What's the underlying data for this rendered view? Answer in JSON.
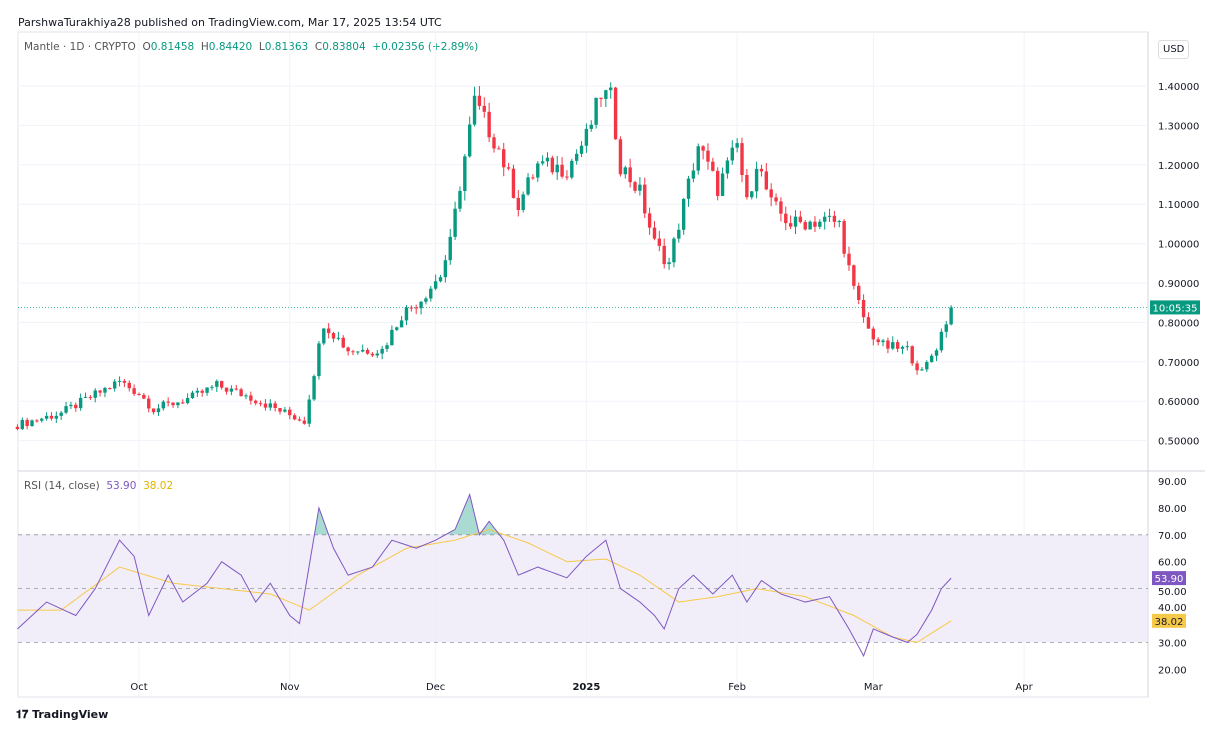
{
  "header": {
    "publisher": "ParshwaTurakhiya28 published on TradingView.com, Mar 17, 2025 13:54 UTC"
  },
  "legend": {
    "symbol": "Mantle · 1D · CRYPTO",
    "o_label": "O",
    "o": "0.81458",
    "h_label": "H",
    "h": "0.84420",
    "l_label": "L",
    "l": "0.81363",
    "c_label": "C",
    "c": "0.83804",
    "change": "+0.02356 (+2.89%)"
  },
  "currency": "USD",
  "countdown": "10:05:35",
  "rsi_legend": {
    "label": "RSI (14, close)",
    "rsi": "53.90",
    "ma": "38.02"
  },
  "brand": "TradingView",
  "colors": {
    "up": "#089981",
    "down": "#f23645",
    "rsi": "#7e57c2",
    "rsi_ma": "#f7c948",
    "band": "#ede7f6"
  },
  "chart_data": [
    {
      "type": "candlestick",
      "title": "Mantle · 1D · CRYPTO",
      "last_close": 0.83804,
      "ylim": [
        0.45,
        1.45
      ],
      "y_ticks": [
        "1.40000",
        "1.30000",
        "1.20000",
        "1.10000",
        "1.00000",
        "0.90000",
        "0.80000",
        "0.70000",
        "0.60000",
        "0.50000"
      ],
      "x_ticks": [
        {
          "label": "Oct",
          "date": "2024-10-01"
        },
        {
          "label": "Nov",
          "date": "2024-11-01"
        },
        {
          "label": "Dec",
          "date": "2024-12-01"
        },
        {
          "label": "2025",
          "date": "2025-01-01"
        },
        {
          "label": "Feb",
          "date": "2025-02-01"
        },
        {
          "label": "Mar",
          "date": "2025-03-01"
        },
        {
          "label": "Apr",
          "date": "2025-04-01"
        }
      ],
      "close_path": [
        [
          "2024-09-06",
          0.54
        ],
        [
          "2024-09-15",
          0.57
        ],
        [
          "2024-09-27",
          0.65
        ],
        [
          "2024-10-01",
          0.62
        ],
        [
          "2024-10-04",
          0.58
        ],
        [
          "2024-10-12",
          0.61
        ],
        [
          "2024-10-17",
          0.64
        ],
        [
          "2024-10-24",
          0.61
        ],
        [
          "2024-10-31",
          0.57
        ],
        [
          "2024-11-04",
          0.55
        ],
        [
          "2024-11-08",
          0.8
        ],
        [
          "2024-11-13",
          0.73
        ],
        [
          "2024-11-20",
          0.73
        ],
        [
          "2024-11-24",
          0.82
        ],
        [
          "2024-11-28",
          0.86
        ],
        [
          "2024-12-02",
          0.92
        ],
        [
          "2024-12-04",
          1.0
        ],
        [
          "2024-12-06",
          1.15
        ],
        [
          "2024-12-09",
          1.36
        ],
        [
          "2024-12-14",
          1.24
        ],
        [
          "2024-12-18",
          1.1
        ],
        [
          "2024-12-22",
          1.2
        ],
        [
          "2024-12-28",
          1.19
        ],
        [
          "2025-01-01",
          1.27
        ],
        [
          "2025-01-04",
          1.38
        ],
        [
          "2025-01-06",
          1.37
        ],
        [
          "2025-01-08",
          1.2
        ],
        [
          "2025-01-12",
          1.13
        ],
        [
          "2025-01-15",
          1.0
        ],
        [
          "2025-01-18",
          0.95
        ],
        [
          "2025-01-21",
          1.1
        ],
        [
          "2025-01-24",
          1.25
        ],
        [
          "2025-01-28",
          1.14
        ],
        [
          "2025-02-01",
          1.25
        ],
        [
          "2025-02-03",
          1.1
        ],
        [
          "2025-02-05",
          1.21
        ],
        [
          "2025-02-08",
          1.1
        ],
        [
          "2025-02-12",
          1.05
        ],
        [
          "2025-02-20",
          1.06
        ],
        [
          "2025-02-22",
          1.05
        ],
        [
          "2025-02-25",
          0.88
        ],
        [
          "2025-02-28",
          0.78
        ],
        [
          "2025-03-03",
          0.74
        ],
        [
          "2025-03-08",
          0.73
        ],
        [
          "2025-03-11",
          0.67
        ],
        [
          "2025-03-14",
          0.74
        ],
        [
          "2025-03-17",
          0.838
        ]
      ]
    },
    {
      "type": "line",
      "title": "RSI (14, close)",
      "ylim": [
        15,
        92
      ],
      "y_ticks": [
        "90.00",
        "80.00",
        "70.00",
        "60.00",
        "50.00",
        "40.00",
        "30.00",
        "20.00"
      ],
      "bands": [
        30,
        70
      ],
      "series": [
        {
          "name": "RSI",
          "last": 53.9,
          "points": [
            [
              "2024-09-06",
              35
            ],
            [
              "2024-09-12",
              45
            ],
            [
              "2024-09-18",
              40
            ],
            [
              "2024-09-22",
              50
            ],
            [
              "2024-09-27",
              68
            ],
            [
              "2024-09-30",
              62
            ],
            [
              "2024-10-03",
              40
            ],
            [
              "2024-10-07",
              55
            ],
            [
              "2024-10-10",
              45
            ],
            [
              "2024-10-15",
              52
            ],
            [
              "2024-10-18",
              60
            ],
            [
              "2024-10-22",
              55
            ],
            [
              "2024-10-25",
              45
            ],
            [
              "2024-10-28",
              52
            ],
            [
              "2024-11-01",
              40
            ],
            [
              "2024-11-03",
              37
            ],
            [
              "2024-11-07",
              80
            ],
            [
              "2024-11-10",
              65
            ],
            [
              "2024-11-13",
              55
            ],
            [
              "2024-11-18",
              58
            ],
            [
              "2024-11-22",
              68
            ],
            [
              "2024-11-27",
              65
            ],
            [
              "2024-12-01",
              68
            ],
            [
              "2024-12-05",
              72
            ],
            [
              "2024-12-08",
              85
            ],
            [
              "2024-12-10",
              70
            ],
            [
              "2024-12-12",
              75
            ],
            [
              "2024-12-15",
              68
            ],
            [
              "2024-12-18",
              55
            ],
            [
              "2024-12-22",
              58
            ],
            [
              "2024-12-28",
              54
            ],
            [
              "2025-01-01",
              62
            ],
            [
              "2025-01-05",
              68
            ],
            [
              "2025-01-08",
              50
            ],
            [
              "2025-01-12",
              45
            ],
            [
              "2025-01-15",
              40
            ],
            [
              "2025-01-17",
              35
            ],
            [
              "2025-01-20",
              50
            ],
            [
              "2025-01-23",
              55
            ],
            [
              "2025-01-27",
              48
            ],
            [
              "2025-01-31",
              55
            ],
            [
              "2025-02-03",
              45
            ],
            [
              "2025-02-06",
              53
            ],
            [
              "2025-02-10",
              48
            ],
            [
              "2025-02-15",
              45
            ],
            [
              "2025-02-20",
              47
            ],
            [
              "2025-02-24",
              35
            ],
            [
              "2025-02-27",
              25
            ],
            [
              "2025-03-01",
              35
            ],
            [
              "2025-03-05",
              32
            ],
            [
              "2025-03-08",
              30
            ],
            [
              "2025-03-10",
              33
            ],
            [
              "2025-03-13",
              42
            ],
            [
              "2025-03-15",
              50
            ],
            [
              "2025-03-17",
              53.9
            ]
          ]
        },
        {
          "name": "RSI MA",
          "last": 38.02,
          "points": [
            [
              "2024-09-06",
              42
            ],
            [
              "2024-09-15",
              42
            ],
            [
              "2024-09-27",
              58
            ],
            [
              "2024-10-08",
              52
            ],
            [
              "2024-10-18",
              50
            ],
            [
              "2024-10-28",
              48
            ],
            [
              "2024-11-05",
              42
            ],
            [
              "2024-11-15",
              55
            ],
            [
              "2024-11-25",
              65
            ],
            [
              "2024-12-05",
              68
            ],
            [
              "2024-12-12",
              72
            ],
            [
              "2024-12-20",
              67
            ],
            [
              "2024-12-28",
              60
            ],
            [
              "2025-01-05",
              61
            ],
            [
              "2025-01-12",
              55
            ],
            [
              "2025-01-20",
              45
            ],
            [
              "2025-01-28",
              47
            ],
            [
              "2025-02-05",
              50
            ],
            [
              "2025-02-15",
              47
            ],
            [
              "2025-02-25",
              40
            ],
            [
              "2025-03-05",
              32
            ],
            [
              "2025-03-10",
              30
            ],
            [
              "2025-03-17",
              38.02
            ]
          ]
        }
      ]
    }
  ]
}
